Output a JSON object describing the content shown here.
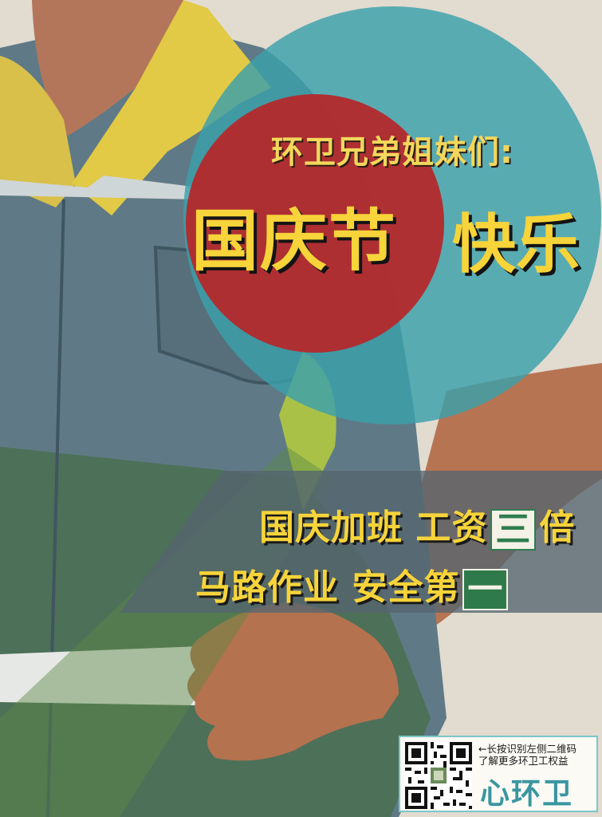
{
  "poster": {
    "headline_small": "环卫兄弟姐妹们:",
    "headline_big_red": "国庆节",
    "headline_big_teal": "快乐",
    "line1_text": "国庆加班 工资",
    "line1_box_white": "三",
    "line1_tail": "倍",
    "line2_text": "马路作业 安全第",
    "line2_box_green": "一"
  },
  "promo": {
    "text_line1": "←长按识别左侧二维码",
    "text_line2": "了解更多环卫工权益",
    "logo_text": "心环卫"
  },
  "colors": {
    "teal_circle": "#3aa0ab",
    "red_circle": "#b4292c",
    "yellow_text": "#f6d43a",
    "green_box": "#2f7a4a"
  }
}
